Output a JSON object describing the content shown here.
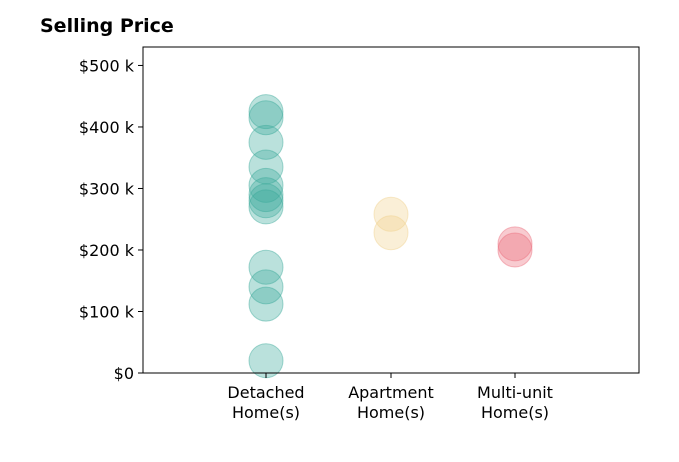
{
  "chart_data": {
    "type": "scatter",
    "title": "Selling Price",
    "xlabel": "",
    "ylabel": "",
    "categories": [
      "Detached\nHome(s)",
      "Apartment\nHome(s)",
      "Multi-unit\nHome(s)"
    ],
    "ylim": [
      0,
      530000
    ],
    "yticks": [
      {
        "value": 0,
        "label": "$0"
      },
      {
        "value": 100000,
        "label": "$100 k"
      },
      {
        "value": 200000,
        "label": "$200 k"
      },
      {
        "value": 300000,
        "label": "$300 k"
      },
      {
        "value": 400000,
        "label": "$400 k"
      },
      {
        "value": 500000,
        "label": "$500 k"
      }
    ],
    "grid": false,
    "series": [
      {
        "category": "Detached\nHome(s)",
        "color": "#3aa89a",
        "values": [
          425000,
          415000,
          375000,
          335000,
          305000,
          290000,
          280000,
          270000,
          172000,
          140000,
          112000,
          20000
        ]
      },
      {
        "category": "Apartment\nHome(s)",
        "color": "#f0d08c",
        "values": [
          258000,
          228000
        ]
      },
      {
        "category": "Multi-unit\nHome(s)",
        "color": "#eb6a79",
        "values": [
          210000,
          200000
        ]
      }
    ]
  }
}
